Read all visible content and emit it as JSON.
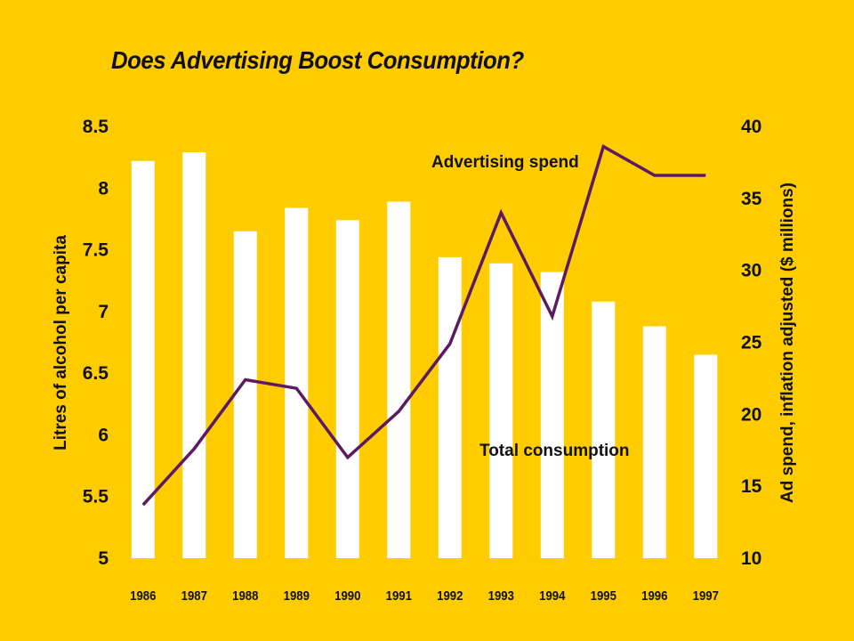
{
  "chart_data": {
    "type": "bar+line",
    "title": "Does Advertising Boost Consumption?",
    "categories": [
      "1986",
      "1987",
      "1988",
      "1989",
      "1990",
      "1991",
      "1992",
      "1993",
      "1994",
      "1995",
      "1996",
      "1997"
    ],
    "series": [
      {
        "name": "Total consumption",
        "type": "bar",
        "axis": "left",
        "color": "#FFFFFF",
        "values": [
          8.22,
          8.29,
          7.65,
          7.84,
          7.74,
          7.89,
          7.44,
          7.39,
          7.32,
          7.08,
          6.88,
          6.65
        ]
      },
      {
        "name": "Advertising spend",
        "type": "line",
        "axis": "right",
        "color": "#5B1A63",
        "values": [
          13.7,
          17.6,
          22.4,
          21.8,
          17.0,
          20.2,
          24.9,
          34.0,
          26.8,
          38.6,
          36.6,
          36.6
        ]
      }
    ],
    "ylabel": "Litres of alcohol per capita",
    "ylim": [
      5,
      8.5
    ],
    "yticks": [
      "5",
      "5.5",
      "6",
      "6.5",
      "7",
      "7.5",
      "8",
      "8.5"
    ],
    "y2label": "Ad spend, inflation adjusted ($ millions)",
    "y2lim": [
      10,
      40
    ],
    "y2ticks": [
      "10",
      "15",
      "20",
      "25",
      "30",
      "35",
      "40"
    ],
    "xlabel": "",
    "grid": false,
    "annotations": {
      "advertising": "Advertising spend",
      "consumption": "Total consumption"
    }
  }
}
